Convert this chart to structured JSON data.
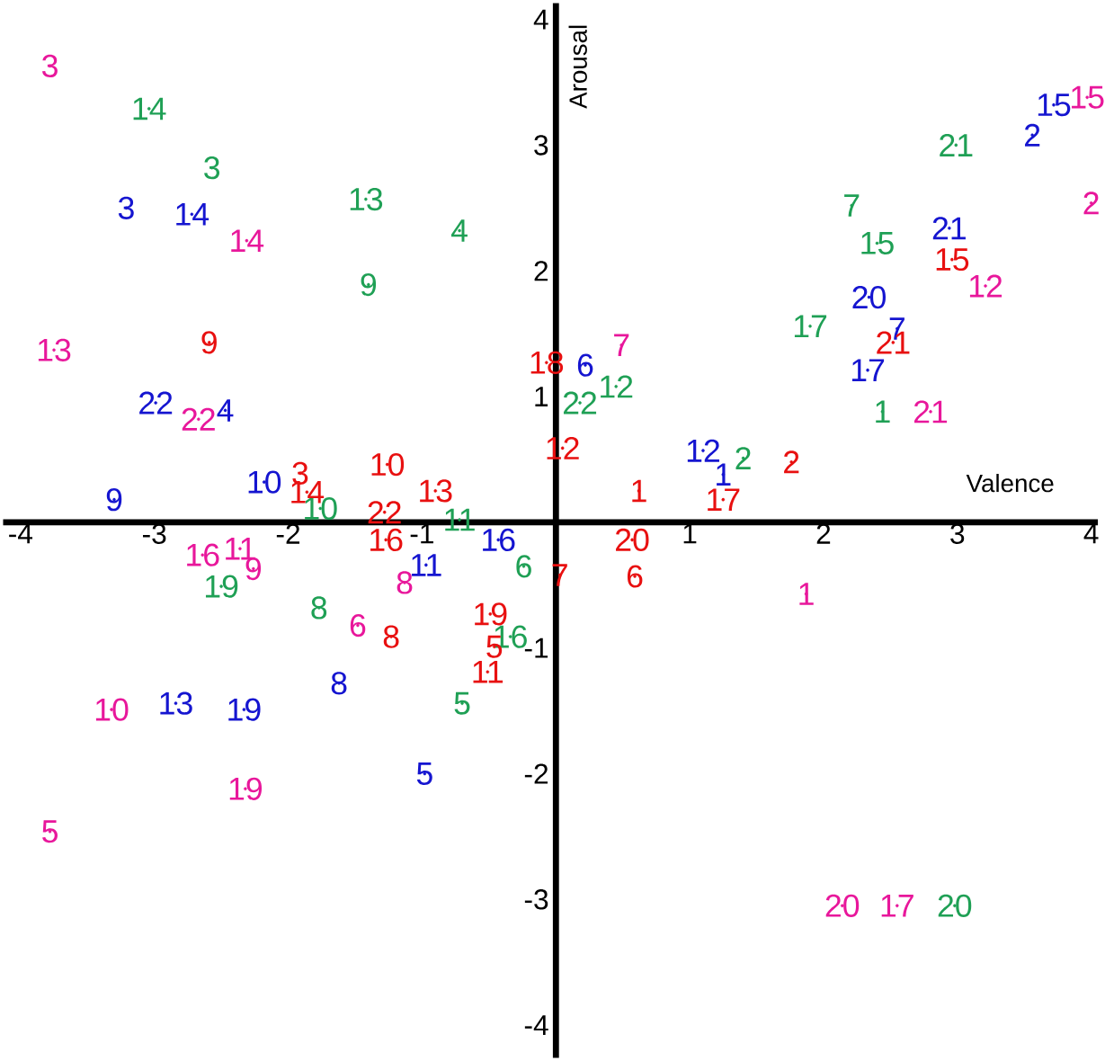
{
  "chart_data": {
    "type": "scatter",
    "xlabel": "Valence",
    "ylabel": "Arousal",
    "xlim": [
      -4.13,
      4.05
    ],
    "ylim": [
      -4.26,
      4.13
    ],
    "xticks": [
      -4,
      -3,
      -2,
      -1,
      1,
      2,
      3,
      4
    ],
    "yticks": [
      -4,
      -3,
      -2,
      -1,
      1,
      2,
      3,
      4
    ],
    "series": [
      {
        "color": "#e8179b",
        "x": [
          1.87,
          4.0,
          -3.78,
          -2.31,
          -3.78,
          -1.48,
          0.49,
          -1.13,
          -2.26,
          -3.32,
          -2.36,
          3.21,
          -3.75,
          3.97,
          -2.64,
          2.55,
          -2.32,
          2.14,
          2.8,
          -2.67
        ],
        "values": [
          -0.57,
          2.54,
          3.63,
          2.24,
          -2.46,
          -0.82,
          1.41,
          -0.48,
          -0.37,
          -1.49,
          -0.21,
          1.88,
          1.37,
          3.38,
          -0.26,
          -3.05,
          -2.12,
          -3.05,
          0.88,
          0.82
        ]
      },
      {
        "color": "#1fa055",
        "x": [
          2.44,
          1.4,
          -2.57,
          -0.72,
          -0.7,
          -0.24,
          2.21,
          -1.77,
          -1.4,
          -1.76,
          -0.72,
          0.45,
          -1.42,
          -3.04,
          2.4,
          -0.34,
          1.9,
          -2.5,
          2.98,
          2.99,
          0.18
        ],
        "values": [
          0.88,
          0.51,
          2.82,
          2.32,
          -1.44,
          -0.35,
          2.52,
          -0.68,
          1.89,
          0.11,
          0.02,
          1.08,
          2.57,
          3.29,
          2.22,
          -0.91,
          1.56,
          -0.51,
          -3.05,
          3.0,
          0.95
        ]
      },
      {
        "color": "#1515d0",
        "x": [
          1.25,
          3.56,
          -3.21,
          -2.47,
          -0.98,
          0.22,
          2.55,
          -1.62,
          -3.3,
          -2.18,
          -0.97,
          1.1,
          -2.84,
          -2.72,
          3.72,
          -0.43,
          2.33,
          -2.33,
          2.34,
          2.94,
          -2.99
        ],
        "values": [
          0.38,
          3.08,
          2.5,
          0.89,
          -2.0,
          1.25,
          1.54,
          -1.28,
          0.18,
          0.32,
          -0.34,
          0.57,
          -1.44,
          2.45,
          3.32,
          -0.14,
          1.21,
          -1.49,
          1.79,
          2.34,
          0.95
        ]
      },
      {
        "color": "#e81010",
        "x": [
          0.62,
          1.76,
          -1.91,
          -0.46,
          0.59,
          0.03,
          -1.23,
          -2.59,
          -1.26,
          -0.51,
          0.05,
          -0.9,
          -1.86,
          2.96,
          -1.27,
          1.25,
          -0.07,
          -0.49,
          0.57,
          2.52,
          -1.28
        ],
        "values": [
          0.25,
          0.48,
          0.39,
          -0.99,
          -0.43,
          -0.42,
          -0.91,
          1.43,
          0.46,
          -1.19,
          0.59,
          0.25,
          0.24,
          2.09,
          -0.14,
          0.18,
          1.27,
          -0.73,
          -0.14,
          1.43,
          0.08
        ]
      }
    ],
    "annotations": [
      {
        "text": "1",
        "x": 1.87,
        "y": -0.57
      },
      {
        "text": "2",
        "x": 4.0,
        "y": 2.54
      },
      {
        "text": "3",
        "x": -3.78,
        "y": 3.63
      },
      {
        "text": "14",
        "x": -2.31,
        "y": 2.24
      },
      {
        "text": "5",
        "x": -3.78,
        "y": -2.46
      },
      {
        "text": "6",
        "x": -1.48,
        "y": -0.82
      },
      {
        "text": "7",
        "x": 0.49,
        "y": 1.41
      },
      {
        "text": "8",
        "x": -1.13,
        "y": -0.48
      },
      {
        "text": "9",
        "x": -2.26,
        "y": -0.37
      },
      {
        "text": "10",
        "x": -3.32,
        "y": -1.49
      },
      {
        "text": "11",
        "x": -2.36,
        "y": -0.21
      },
      {
        "text": "12",
        "x": 3.21,
        "y": 1.88
      },
      {
        "text": "13",
        "x": -3.75,
        "y": 1.37
      },
      {
        "text": "15",
        "x": 3.97,
        "y": 3.38
      },
      {
        "text": "16",
        "x": -2.64,
        "y": -0.26
      },
      {
        "text": "17",
        "x": 2.55,
        "y": -3.05
      },
      {
        "text": "19",
        "x": -2.32,
        "y": -2.12
      },
      {
        "text": "20",
        "x": 2.14,
        "y": -3.05
      },
      {
        "text": "21",
        "x": 2.8,
        "y": 0.88
      },
      {
        "text": "22",
        "x": -2.67,
        "y": 0.82
      },
      {
        "text": "1",
        "x": 2.44,
        "y": 0.88
      },
      {
        "text": "2",
        "x": 1.4,
        "y": 0.51
      },
      {
        "text": "3",
        "x": -2.57,
        "y": 2.82
      },
      {
        "text": "4",
        "x": -0.72,
        "y": 2.32
      },
      {
        "text": "5",
        "x": -0.7,
        "y": -1.44
      },
      {
        "text": "6",
        "x": -0.24,
        "y": -0.35
      },
      {
        "text": "7",
        "x": 2.21,
        "y": 2.52
      },
      {
        "text": "8",
        "x": -1.77,
        "y": -0.68
      },
      {
        "text": "9",
        "x": -1.4,
        "y": 1.89
      },
      {
        "text": "10",
        "x": -1.76,
        "y": 0.11
      },
      {
        "text": "11",
        "x": -0.72,
        "y": 0.02
      },
      {
        "text": "12",
        "x": 0.45,
        "y": 1.08
      },
      {
        "text": "13",
        "x": -1.42,
        "y": 2.57
      },
      {
        "text": "14",
        "x": -3.04,
        "y": 3.29
      },
      {
        "text": "15",
        "x": 2.4,
        "y": 2.22
      },
      {
        "text": "16",
        "x": -0.34,
        "y": -0.91
      },
      {
        "text": "17",
        "x": 1.9,
        "y": 1.56
      },
      {
        "text": "19",
        "x": -2.5,
        "y": -0.51
      },
      {
        "text": "20",
        "x": 2.98,
        "y": -3.05
      },
      {
        "text": "21",
        "x": 2.99,
        "y": 3.0
      },
      {
        "text": "22",
        "x": 0.18,
        "y": 0.95
      },
      {
        "text": "1",
        "x": 1.25,
        "y": 0.38
      },
      {
        "text": "2",
        "x": 3.56,
        "y": 3.08
      },
      {
        "text": "3",
        "x": -3.21,
        "y": 2.5
      },
      {
        "text": "4",
        "x": -2.47,
        "y": 0.89
      },
      {
        "text": "5",
        "x": -0.98,
        "y": -2.0
      },
      {
        "text": "6",
        "x": 0.22,
        "y": 1.25
      },
      {
        "text": "7",
        "x": 2.55,
        "y": 1.54
      },
      {
        "text": "8",
        "x": -1.62,
        "y": -1.28
      },
      {
        "text": "9",
        "x": -3.3,
        "y": 0.18
      },
      {
        "text": "10",
        "x": -2.18,
        "y": 0.32
      },
      {
        "text": "11",
        "x": -0.97,
        "y": -0.34
      },
      {
        "text": "12",
        "x": 1.1,
        "y": 0.57
      },
      {
        "text": "13",
        "x": -2.84,
        "y": -1.44
      },
      {
        "text": "14",
        "x": -2.72,
        "y": 2.45
      },
      {
        "text": "15",
        "x": 3.72,
        "y": 3.32
      },
      {
        "text": "16",
        "x": -0.43,
        "y": -0.14
      },
      {
        "text": "17",
        "x": 2.33,
        "y": 1.21
      },
      {
        "text": "19",
        "x": -2.33,
        "y": -1.49
      },
      {
        "text": "20",
        "x": 2.34,
        "y": 1.79
      },
      {
        "text": "21",
        "x": 2.94,
        "y": 2.34
      },
      {
        "text": "22",
        "x": -2.99,
        "y": 0.95
      },
      {
        "text": "1",
        "x": 0.62,
        "y": 0.25
      },
      {
        "text": "2",
        "x": 1.76,
        "y": 0.48
      },
      {
        "text": "3",
        "x": -1.91,
        "y": 0.39
      },
      {
        "text": "5",
        "x": -0.46,
        "y": -0.99
      },
      {
        "text": "6",
        "x": 0.59,
        "y": -0.43
      },
      {
        "text": "7",
        "x": 0.03,
        "y": -0.42
      },
      {
        "text": "8",
        "x": -1.23,
        "y": -0.91
      },
      {
        "text": "9",
        "x": -2.59,
        "y": 1.43
      },
      {
        "text": "10",
        "x": -1.26,
        "y": 0.46
      },
      {
        "text": "11",
        "x": -0.51,
        "y": -1.19
      },
      {
        "text": "12",
        "x": 0.05,
        "y": 0.59
      },
      {
        "text": "13",
        "x": -0.9,
        "y": 0.25
      },
      {
        "text": "14",
        "x": -1.86,
        "y": 0.24
      },
      {
        "text": "15",
        "x": 2.96,
        "y": 2.09
      },
      {
        "text": "16",
        "x": -1.27,
        "y": -0.14
      },
      {
        "text": "17",
        "x": 1.25,
        "y": 0.18
      },
      {
        "text": "18",
        "x": -0.07,
        "y": 1.27
      },
      {
        "text": "19",
        "x": -0.49,
        "y": -0.73
      },
      {
        "text": "20",
        "x": 0.57,
        "y": -0.14
      },
      {
        "text": "21",
        "x": 2.52,
        "y": 1.43
      },
      {
        "text": "22",
        "x": -1.28,
        "y": 0.08
      }
    ]
  }
}
